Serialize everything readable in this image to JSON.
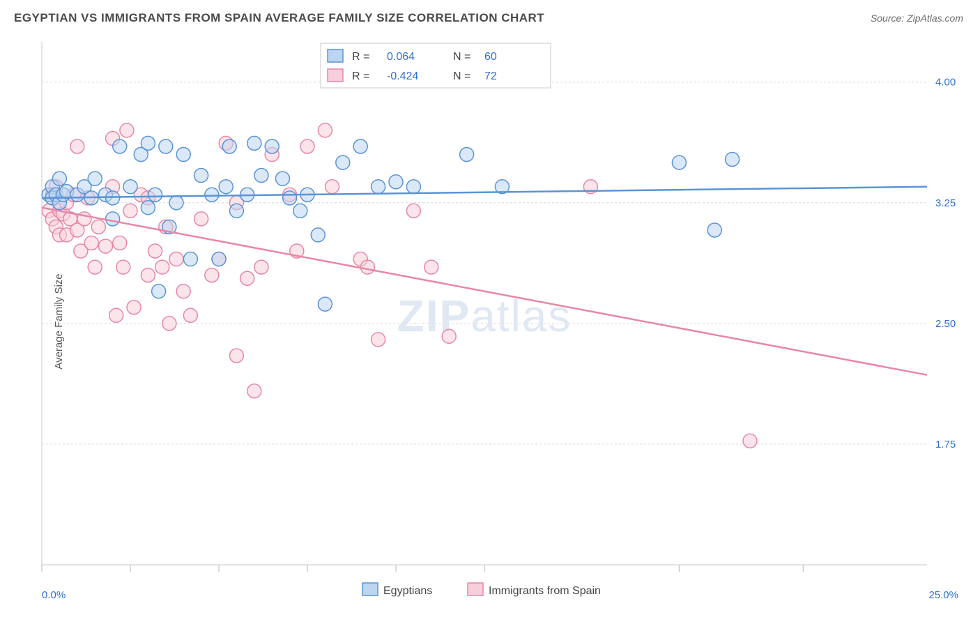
{
  "header": {
    "title": "EGYPTIAN VS IMMIGRANTS FROM SPAIN AVERAGE FAMILY SIZE CORRELATION CHART",
    "source": "Source: ZipAtlas.com"
  },
  "ylabel": "Average Family Size",
  "watermark": {
    "bold": "ZIP",
    "rest": "atlas"
  },
  "chart": {
    "type": "scatter",
    "xlim": [
      0,
      25
    ],
    "ylim": [
      1.0,
      4.25
    ],
    "xlabel_min": "0.0%",
    "xlabel_max": "25.0%",
    "xtick_positions": [
      0,
      2.5,
      5,
      7.5,
      10,
      12.5,
      18,
      21.5
    ],
    "yticks": [
      1.75,
      2.5,
      3.25,
      4.0
    ],
    "ytick_labels": [
      "1.75",
      "2.50",
      "3.25",
      "4.00"
    ],
    "grid_color": "#d8d8d8",
    "background_color": "#ffffff",
    "border_color": "#c8c8c8",
    "series": [
      {
        "name": "Egyptians",
        "color_fill": "#bcd5f0",
        "color_stroke": "#5a94d6",
        "marker_radius": 10,
        "fill_opacity": 0.55,
        "R": "0.064",
        "N": "60",
        "regression": {
          "x1": 0,
          "y1": 3.28,
          "x2": 25,
          "y2": 3.35
        },
        "points": [
          [
            0.2,
            3.3
          ],
          [
            0.3,
            3.35
          ],
          [
            0.3,
            3.28
          ],
          [
            0.4,
            3.3
          ],
          [
            0.5,
            3.25
          ],
          [
            0.5,
            3.4
          ],
          [
            0.6,
            3.3
          ],
          [
            0.7,
            3.32
          ],
          [
            1.0,
            3.3
          ],
          [
            1.2,
            3.35
          ],
          [
            1.4,
            3.28
          ],
          [
            1.5,
            3.4
          ],
          [
            1.8,
            3.3
          ],
          [
            2.0,
            3.28
          ],
          [
            2.0,
            3.15
          ],
          [
            2.2,
            3.6
          ],
          [
            2.5,
            3.35
          ],
          [
            2.8,
            3.55
          ],
          [
            3.0,
            3.62
          ],
          [
            3.0,
            3.22
          ],
          [
            3.2,
            3.3
          ],
          [
            3.3,
            2.7
          ],
          [
            3.5,
            3.6
          ],
          [
            3.6,
            3.1
          ],
          [
            3.8,
            3.25
          ],
          [
            4.0,
            3.55
          ],
          [
            4.2,
            2.9
          ],
          [
            4.5,
            3.42
          ],
          [
            4.8,
            3.3
          ],
          [
            5.0,
            2.9
          ],
          [
            5.2,
            3.35
          ],
          [
            5.3,
            3.6
          ],
          [
            5.5,
            3.2
          ],
          [
            5.8,
            3.3
          ],
          [
            6.0,
            3.62
          ],
          [
            6.2,
            3.42
          ],
          [
            6.5,
            3.6
          ],
          [
            6.8,
            3.4
          ],
          [
            7.0,
            3.28
          ],
          [
            7.3,
            3.2
          ],
          [
            7.5,
            3.3
          ],
          [
            7.8,
            3.05
          ],
          [
            8.0,
            2.62
          ],
          [
            8.5,
            3.5
          ],
          [
            9.0,
            3.6
          ],
          [
            9.5,
            3.35
          ],
          [
            10.0,
            3.38
          ],
          [
            10.5,
            3.35
          ],
          [
            12.0,
            3.55
          ],
          [
            13.0,
            3.35
          ],
          [
            18.0,
            3.5
          ],
          [
            19.0,
            3.08
          ],
          [
            19.5,
            3.52
          ]
        ]
      },
      {
        "name": "Immigrants from Spain",
        "color_fill": "#f7cfda",
        "color_stroke": "#e887a5",
        "marker_radius": 10,
        "fill_opacity": 0.55,
        "R": "-0.424",
        "N": "72",
        "regression": {
          "x1": 0,
          "y1": 3.22,
          "x2": 25,
          "y2": 2.18
        },
        "points": [
          [
            0.2,
            3.2
          ],
          [
            0.3,
            3.15
          ],
          [
            0.3,
            3.3
          ],
          [
            0.4,
            3.1
          ],
          [
            0.4,
            3.35
          ],
          [
            0.5,
            3.2
          ],
          [
            0.5,
            3.05
          ],
          [
            0.6,
            3.18
          ],
          [
            0.7,
            3.25
          ],
          [
            0.7,
            3.05
          ],
          [
            0.8,
            3.15
          ],
          [
            0.9,
            3.3
          ],
          [
            1.0,
            3.08
          ],
          [
            1.0,
            3.6
          ],
          [
            1.1,
            2.95
          ],
          [
            1.2,
            3.15
          ],
          [
            1.3,
            3.28
          ],
          [
            1.4,
            3.0
          ],
          [
            1.5,
            2.85
          ],
          [
            1.6,
            3.1
          ],
          [
            1.8,
            2.98
          ],
          [
            2.0,
            3.65
          ],
          [
            2.0,
            3.35
          ],
          [
            2.1,
            2.55
          ],
          [
            2.2,
            3.0
          ],
          [
            2.3,
            2.85
          ],
          [
            2.4,
            3.7
          ],
          [
            2.5,
            3.2
          ],
          [
            2.6,
            2.6
          ],
          [
            2.8,
            3.3
          ],
          [
            3.0,
            2.8
          ],
          [
            3.0,
            3.28
          ],
          [
            3.2,
            2.95
          ],
          [
            3.4,
            2.85
          ],
          [
            3.5,
            3.1
          ],
          [
            3.6,
            2.5
          ],
          [
            3.8,
            2.9
          ],
          [
            4.0,
            2.7
          ],
          [
            4.2,
            2.55
          ],
          [
            4.5,
            3.15
          ],
          [
            4.8,
            2.8
          ],
          [
            5.0,
            2.9
          ],
          [
            5.2,
            3.62
          ],
          [
            5.5,
            3.25
          ],
          [
            5.5,
            2.3
          ],
          [
            5.8,
            2.78
          ],
          [
            6.0,
            2.08
          ],
          [
            6.2,
            2.85
          ],
          [
            6.5,
            3.55
          ],
          [
            7.0,
            3.3
          ],
          [
            7.2,
            2.95
          ],
          [
            7.5,
            3.6
          ],
          [
            8.0,
            3.7
          ],
          [
            8.2,
            3.35
          ],
          [
            9.0,
            2.9
          ],
          [
            9.2,
            2.85
          ],
          [
            9.5,
            2.4
          ],
          [
            10.5,
            3.2
          ],
          [
            11.0,
            2.85
          ],
          [
            11.5,
            2.42
          ],
          [
            15.5,
            3.35
          ],
          [
            20.0,
            1.77
          ]
        ]
      }
    ]
  },
  "top_legend": {
    "entries": [
      {
        "swatch": "blue",
        "R_label": "R =",
        "R_val": "0.064",
        "N_label": "N =",
        "N_val": "60"
      },
      {
        "swatch": "pink",
        "R_label": "R =",
        "R_val": "-0.424",
        "N_label": "N =",
        "N_val": "72"
      }
    ]
  },
  "bottom_legend": {
    "items": [
      {
        "swatch": "blue",
        "label": "Egyptians"
      },
      {
        "swatch": "pink",
        "label": "Immigrants from Spain"
      }
    ]
  }
}
